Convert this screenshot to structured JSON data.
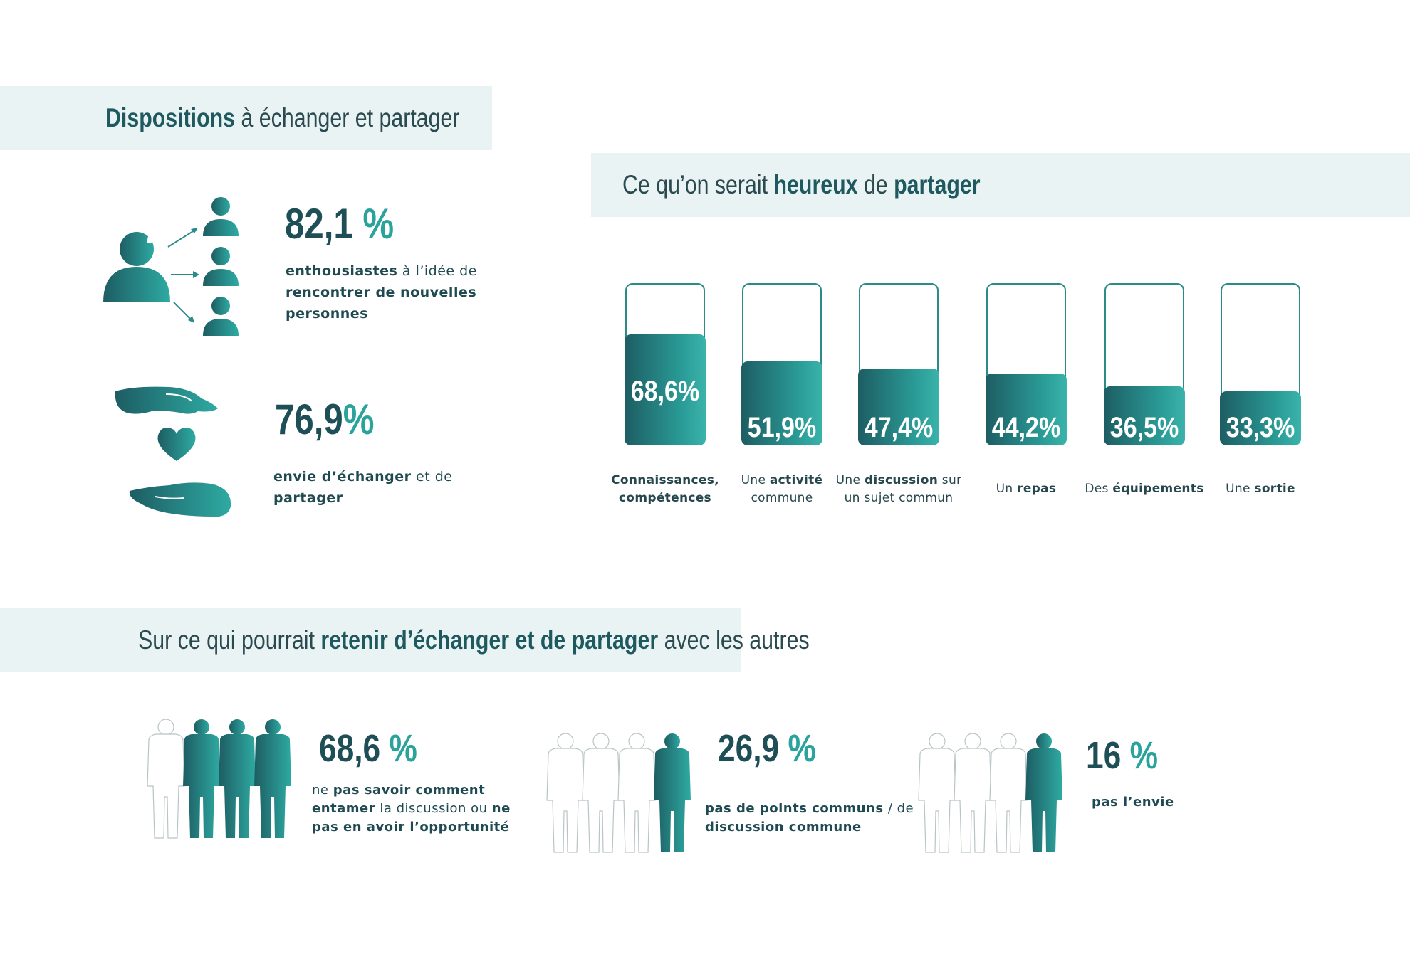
{
  "section1": {
    "title_bold": "Dispositions",
    "title_rest": " à échanger et partager",
    "stat1": {
      "value": "82,1 %",
      "value_num": "82,1",
      "value_unit": " %",
      "desc_bold1": "enthousiastes",
      "desc_light1": " à l’idée de",
      "desc_bold2": "rencontrer de nouvelles",
      "desc_bold3": "personnes"
    },
    "stat2": {
      "value_num": "76,9",
      "value_unit": "%",
      "desc_bold1": "envie d’échanger",
      "desc_light1": " et de",
      "desc_bold2": "partager"
    },
    "icon1": "people-sharing-icon",
    "icon2": "hands-heart-icon"
  },
  "section2": {
    "title_part1": "Ce qu’on serait ",
    "title_bold1": "heureux",
    "title_part2": " de ",
    "title_bold2": "partager"
  },
  "chart_data": {
    "type": "bar",
    "categories": [
      "Connaissances, compétences",
      "Une activité commune",
      "Une discussion sur un sujet commun",
      "Un repas",
      "Des équipements",
      "Une sortie"
    ],
    "values": [
      68.6,
      51.9,
      47.4,
      44.2,
      36.5,
      33.3
    ],
    "value_labels": [
      "68,6%",
      "51,9%",
      "47,4%",
      "44,2%",
      "36,5%",
      "33,3%"
    ],
    "ylim": [
      0,
      100
    ],
    "colors": {
      "fill_start": "#1d5d63",
      "fill_end": "#3ab3ab",
      "outline": "#2b8b88"
    },
    "labels": [
      {
        "l1": [
          [
            "b",
            "Connaissances,"
          ]
        ],
        "l2": [
          [
            "b",
            "compétences"
          ]
        ]
      },
      {
        "l1": [
          [
            "n",
            "Une "
          ],
          [
            "b",
            "activité"
          ]
        ],
        "l2": [
          [
            "n",
            "commune"
          ]
        ]
      },
      {
        "l1": [
          [
            "n",
            "Une "
          ],
          [
            "b",
            "discussion"
          ],
          [
            "n",
            " sur"
          ]
        ],
        "l2": [
          [
            "n",
            "un sujet commun"
          ]
        ]
      },
      {
        "l1": [
          [
            "n",
            "Un "
          ],
          [
            "b",
            "repas"
          ]
        ],
        "l2": []
      },
      {
        "l1": [
          [
            "n",
            "Des "
          ],
          [
            "b",
            "équipements"
          ]
        ],
        "l2": []
      },
      {
        "l1": [
          [
            "n",
            "Une "
          ],
          [
            "b",
            "sortie"
          ]
        ],
        "l2": []
      }
    ]
  },
  "section3": {
    "title_part1": "Sur ce qui pourrait ",
    "title_bold": "retenir d’échanger et de partager",
    "title_part2": " avec les autres",
    "stats": [
      {
        "num": "68,6",
        "unit": " %",
        "filled_fraction": 0.75,
        "lines": [
          [
            [
              "n",
              "ne "
            ],
            [
              "b",
              "pas savoir comment"
            ]
          ],
          [
            [
              "b",
              "entamer"
            ],
            [
              "n",
              " la discussion ou "
            ],
            [
              "b",
              "ne"
            ]
          ],
          [
            [
              "b",
              "pas en avoir l’opportunité"
            ]
          ]
        ]
      },
      {
        "num": "26,9",
        "unit": " %",
        "filled_fraction": 0.25,
        "lines": [
          [
            [
              "b",
              "pas de points communs"
            ],
            [
              "n",
              " / de"
            ]
          ],
          [
            [
              "b",
              "discussion commune"
            ]
          ]
        ]
      },
      {
        "num": "16",
        "unit": " %",
        "filled_fraction": 0.16,
        "lines": [
          [
            [
              "b",
              "pas l’envie"
            ]
          ]
        ]
      }
    ],
    "icon": "people-silhouettes-icon"
  }
}
